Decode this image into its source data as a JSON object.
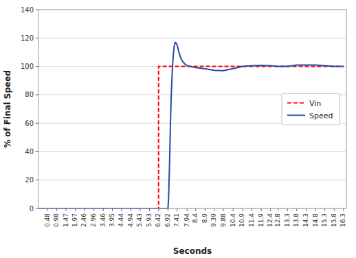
{
  "chart_data": {
    "type": "line",
    "xlabel": "Seconds",
    "ylabel": "% of Final Speed",
    "xlim": [
      0.0,
      16.45
    ],
    "xticks": [
      0.48,
      0.98,
      1.47,
      1.97,
      2.46,
      2.96,
      3.46,
      3.95,
      4.44,
      4.94,
      5.43,
      5.93,
      6.42,
      6.92,
      7.41,
      7.94,
      8.4,
      8.9,
      9.39,
      9.88,
      10.4,
      10.9,
      11.4,
      11.9,
      12.4,
      12.8,
      13.3,
      13.8,
      14.3,
      14.8,
      15.3,
      15.8,
      16.3
    ],
    "ylim": [
      0,
      140
    ],
    "yticks": [
      0,
      20,
      40,
      60,
      80,
      100,
      120,
      140
    ],
    "grid": true,
    "legend": "right",
    "series": [
      {
        "name": "Vin",
        "color": "#ff0000",
        "line_style": "dashed",
        "x": [
          0.0,
          6.415,
          6.415,
          6.42,
          16.3
        ],
        "values": [
          0.0,
          0.0,
          100.0,
          100.0,
          100.0
        ]
      },
      {
        "name": "Speed",
        "color": "#1f4e9e",
        "line_style": "solid",
        "x": [
          0.0,
          6.415,
          6.92,
          6.95,
          7.0,
          7.05,
          7.1,
          7.15,
          7.2,
          7.25,
          7.3,
          7.35,
          7.41,
          7.5,
          7.6,
          7.7,
          7.8,
          7.94,
          8.1,
          8.4,
          8.9,
          9.39,
          9.88,
          10.4,
          10.9,
          11.4,
          11.9,
          12.4,
          12.8,
          13.3,
          13.8,
          14.3,
          14.8,
          15.3,
          15.8,
          16.3
        ],
        "values": [
          0.0,
          0.0,
          0.0,
          8.0,
          30.0,
          60.0,
          82.0,
          97.0,
          108.0,
          114.0,
          117.0,
          116.5,
          115.0,
          110.0,
          106.0,
          103.5,
          102.0,
          100.5,
          100.0,
          99.2,
          98.3,
          97.2,
          97.0,
          98.5,
          100.0,
          100.5,
          100.8,
          100.5,
          100.0,
          100.0,
          101.0,
          101.0,
          101.0,
          100.5,
          100.0,
          100.0
        ]
      }
    ]
  }
}
